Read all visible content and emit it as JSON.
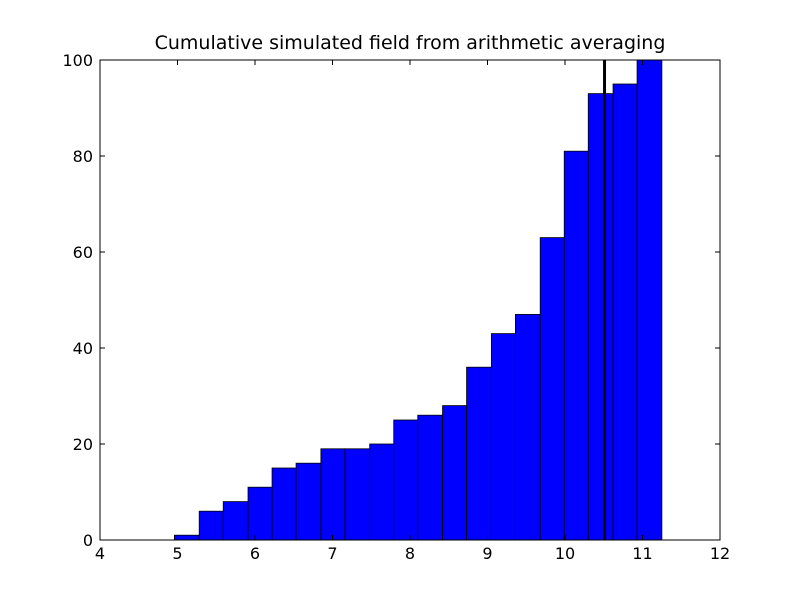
{
  "chart_data": {
    "type": "bar",
    "title": "Cumulative simulated field from arithmetic averaging",
    "xlabel": "",
    "ylabel": "",
    "xlim": [
      4,
      12
    ],
    "ylim": [
      0,
      100
    ],
    "x_ticks": [
      "4",
      "5",
      "6",
      "7",
      "8",
      "9",
      "10",
      "11",
      "12"
    ],
    "y_ticks": [
      "0",
      "20",
      "40",
      "60",
      "80",
      "100"
    ],
    "grid": false,
    "legend": "none",
    "bin_edges": [
      4.96,
      5.28,
      5.59,
      5.91,
      6.22,
      6.53,
      6.85,
      7.16,
      7.48,
      7.79,
      8.1,
      8.42,
      8.73,
      9.05,
      9.36,
      9.68,
      9.99,
      10.3,
      10.62,
      10.93,
      11.25
    ],
    "values": [
      1,
      6,
      8,
      11,
      15,
      16,
      19,
      19,
      20,
      25,
      26,
      28,
      36,
      43,
      47,
      63,
      81,
      93,
      95,
      100
    ],
    "vertical_line_x": 10.51,
    "bar_color": "#0000ff",
    "edge_color": "#000000",
    "line_color": "#000000"
  }
}
